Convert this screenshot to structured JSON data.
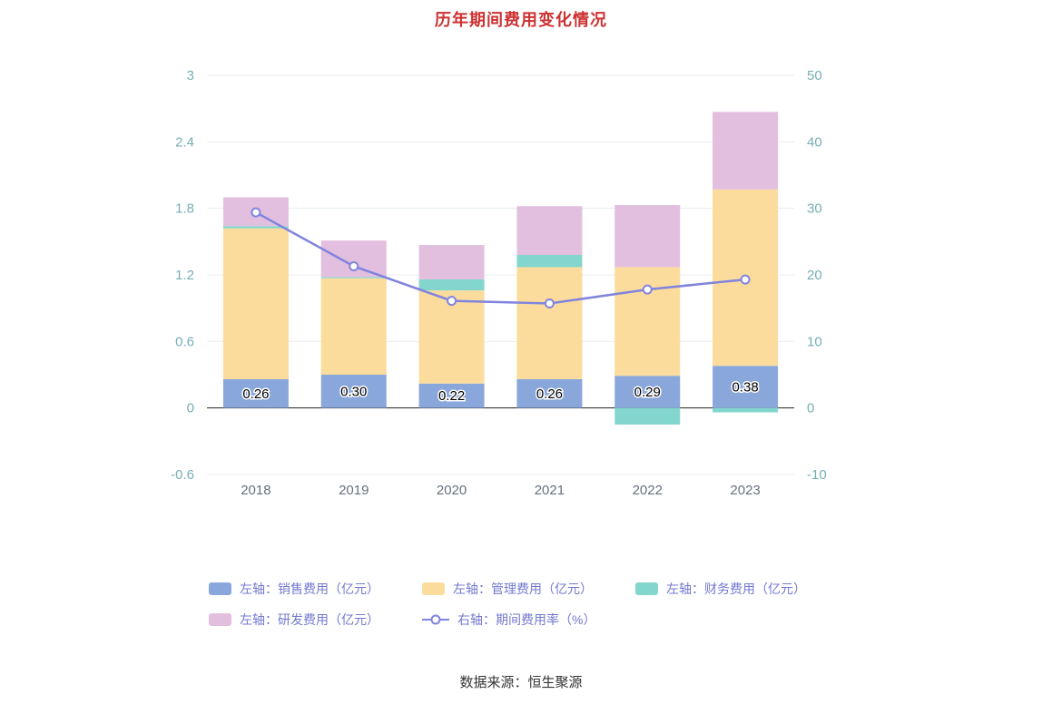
{
  "title": "历年期间费用变化情况",
  "source": "数据来源：恒生聚源",
  "colors": {
    "title": "#cd3232",
    "axis_label": "#76aeb4",
    "year_label": "#667080",
    "grid": "#e9edf2",
    "zero_line": "#222222",
    "legend_text": "#7379cf",
    "source_text": "#333333",
    "bar_label": "#000000",
    "marker_fill": "#ffffff"
  },
  "chart_data": {
    "type": "bar",
    "title": "历年期间费用变化情况",
    "categories": [
      "2018",
      "2019",
      "2020",
      "2021",
      "2022",
      "2023"
    ],
    "left_axis": {
      "min": -0.6,
      "max": 3,
      "ticks": [
        3,
        2.4,
        1.8,
        1.2,
        0.6,
        0,
        -0.6
      ]
    },
    "right_axis": {
      "min": -10,
      "max": 50,
      "ticks": [
        50,
        40,
        30,
        20,
        10,
        0,
        -10
      ]
    },
    "grid": "horizontal",
    "legend_position": "bottom",
    "series": [
      {
        "name": "左轴：销售费用（亿元）",
        "type": "bar",
        "color": "#89a7db",
        "values": [
          0.26,
          0.3,
          0.22,
          0.26,
          0.29,
          0.38
        ],
        "labels": [
          "0.26",
          "0.30",
          "0.22",
          "0.26",
          "0.29",
          "0.38"
        ]
      },
      {
        "name": "左轴：管理费用（亿元）",
        "type": "bar",
        "color": "#fcdc9c",
        "values": [
          1.36,
          0.87,
          0.84,
          1.01,
          0.98,
          1.59
        ]
      },
      {
        "name": "左轴：财务费用（亿元）",
        "type": "bar",
        "color": "#83d6cd",
        "values": [
          0.02,
          0.01,
          0.1,
          0.11,
          -0.15,
          -0.04
        ]
      },
      {
        "name": "左轴：研发费用（亿元）",
        "type": "bar",
        "color": "#e3bfdf",
        "values": [
          0.26,
          0.33,
          0.31,
          0.44,
          0.56,
          0.7
        ]
      },
      {
        "name": "右轴：期间费用率（%）",
        "type": "line",
        "axis": "right",
        "color": "#8084de",
        "values": [
          29.4,
          21.3,
          16.1,
          15.7,
          17.8,
          19.3
        ]
      }
    ]
  }
}
